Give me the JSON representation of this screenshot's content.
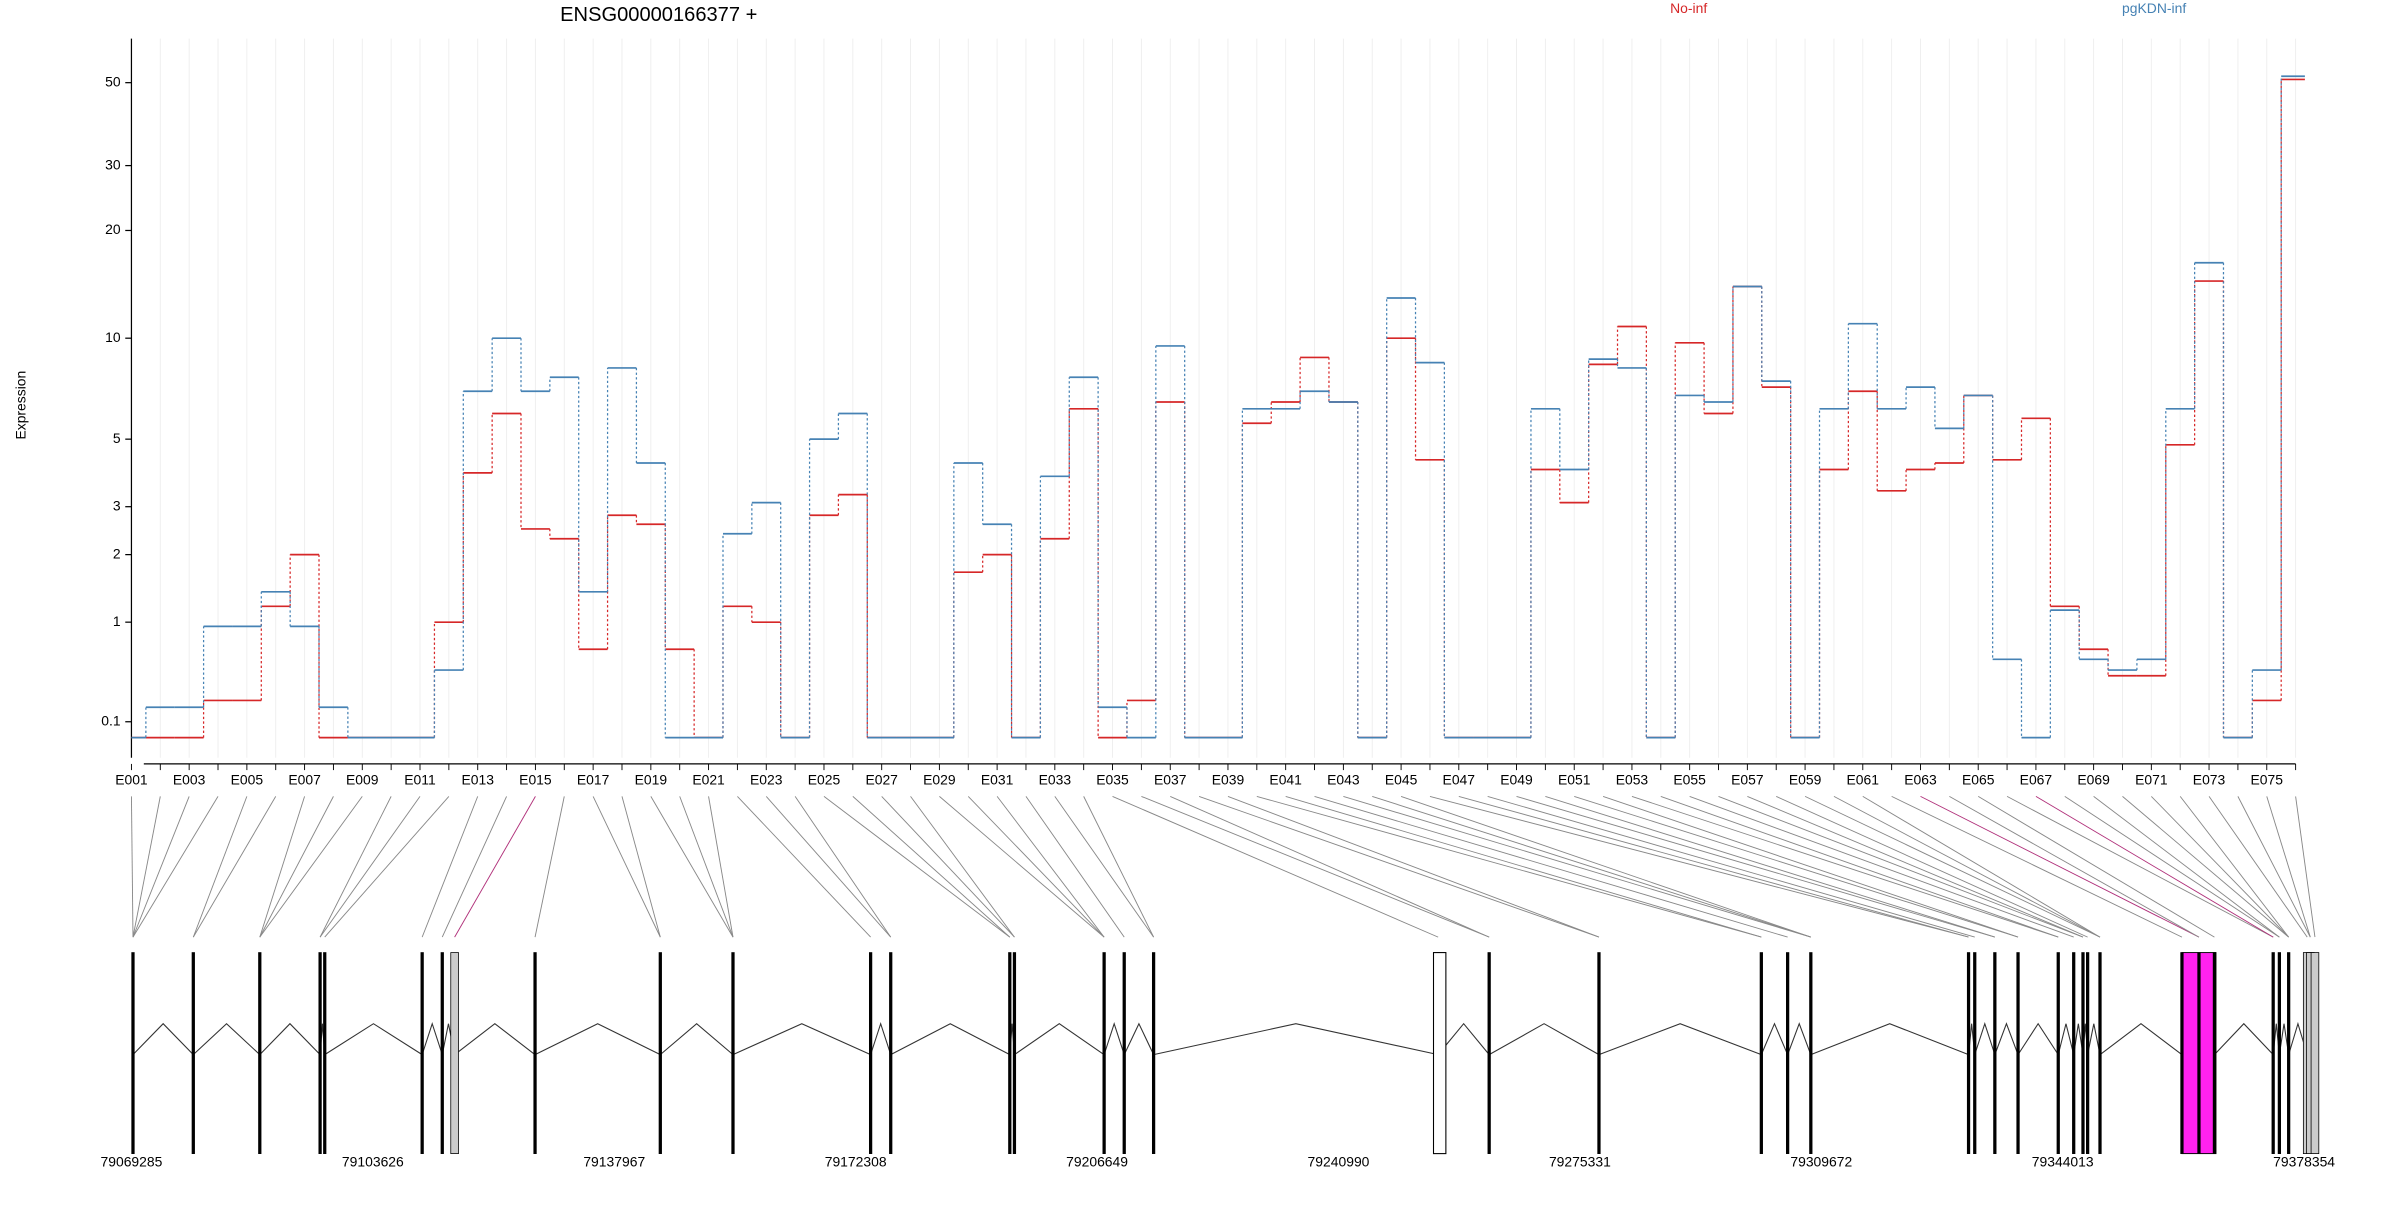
{
  "chart_data": {
    "type": "step",
    "title": "ENSG00000166377 +",
    "ylabel": "Expression",
    "yscale": "log1p",
    "ylim": [
      0,
      63
    ],
    "yticks": [
      0.1,
      1,
      2,
      3,
      5,
      10,
      20,
      30,
      50
    ],
    "grid": true,
    "categories": [
      "E001",
      null,
      "E003",
      null,
      "E005",
      null,
      "E007",
      null,
      "E009",
      null,
      "E011",
      null,
      "E013",
      null,
      "E015",
      null,
      "E017",
      null,
      "E019",
      null,
      "E021",
      null,
      "E023",
      null,
      "E025",
      null,
      "E027",
      null,
      "E029",
      null,
      "E031",
      null,
      "E033",
      null,
      "E035",
      null,
      "E037",
      null,
      "E039",
      null,
      "E041",
      null,
      "E043",
      null,
      "E045",
      null,
      "E047",
      null,
      "E049",
      null,
      "E051",
      null,
      "E053",
      null,
      "E055",
      null,
      "E057",
      null,
      "E059",
      null,
      "E061",
      null,
      "E063",
      null,
      "E065",
      null,
      "E067",
      null,
      "E069",
      null,
      "E071",
      null,
      "E073",
      null,
      "E075",
      null
    ],
    "series": [
      {
        "name": "No-inf",
        "color": "#d62728",
        "values": [
          0,
          0,
          0,
          0.25,
          0.25,
          1.2,
          2.0,
          0,
          0,
          0,
          0,
          1.0,
          3.9,
          6.0,
          2.5,
          2.3,
          0.7,
          2.8,
          2.6,
          0.7,
          0,
          1.2,
          1.0,
          0,
          2.8,
          3.3,
          0,
          0,
          0,
          1.7,
          2.0,
          0,
          2.3,
          6.2,
          0,
          0.25,
          6.5,
          0,
          0,
          5.6,
          6.5,
          8.8,
          6.5,
          0,
          10,
          4.3,
          0,
          0,
          0,
          4.0,
          3.1,
          8.4,
          10.8,
          0,
          9.7,
          6.0,
          14,
          7.2,
          0,
          4.0,
          7.0,
          3.4,
          4.0,
          4.2,
          6.8,
          4.3,
          5.8,
          1.2,
          0.7,
          0.45,
          0.45,
          4.8,
          14.5,
          0,
          0.25,
          51
        ]
      },
      {
        "name": "pgKDN-inf",
        "color": "#4682b4",
        "values": [
          0,
          0.2,
          0.2,
          0.95,
          0.95,
          1.4,
          0.95,
          0.2,
          0,
          0,
          0,
          0.5,
          7.0,
          10,
          7.0,
          7.7,
          1.4,
          8.2,
          4.2,
          0,
          0,
          2.4,
          3.1,
          0,
          5.0,
          6.0,
          0,
          0,
          0,
          4.2,
          2.6,
          0,
          3.8,
          7.7,
          0.2,
          0,
          9.5,
          0,
          0,
          6.2,
          6.2,
          7.0,
          6.5,
          0,
          13,
          8.5,
          0,
          0,
          0,
          6.2,
          4.0,
          8.7,
          8.2,
          0,
          6.8,
          6.5,
          14,
          7.5,
          0,
          6.2,
          11,
          6.2,
          7.2,
          5.4,
          6.8,
          0.6,
          0,
          1.15,
          0.6,
          0.5,
          0.6,
          6.2,
          16.3,
          0,
          0.5,
          52
        ]
      }
    ],
    "gene_lim": [
      79069285,
      79378354
    ],
    "gene_ticks": [
      79069285,
      79103626,
      79137967,
      79172308,
      79206649,
      79240990,
      79275331,
      79309672,
      79344013,
      79378354
    ]
  }
}
